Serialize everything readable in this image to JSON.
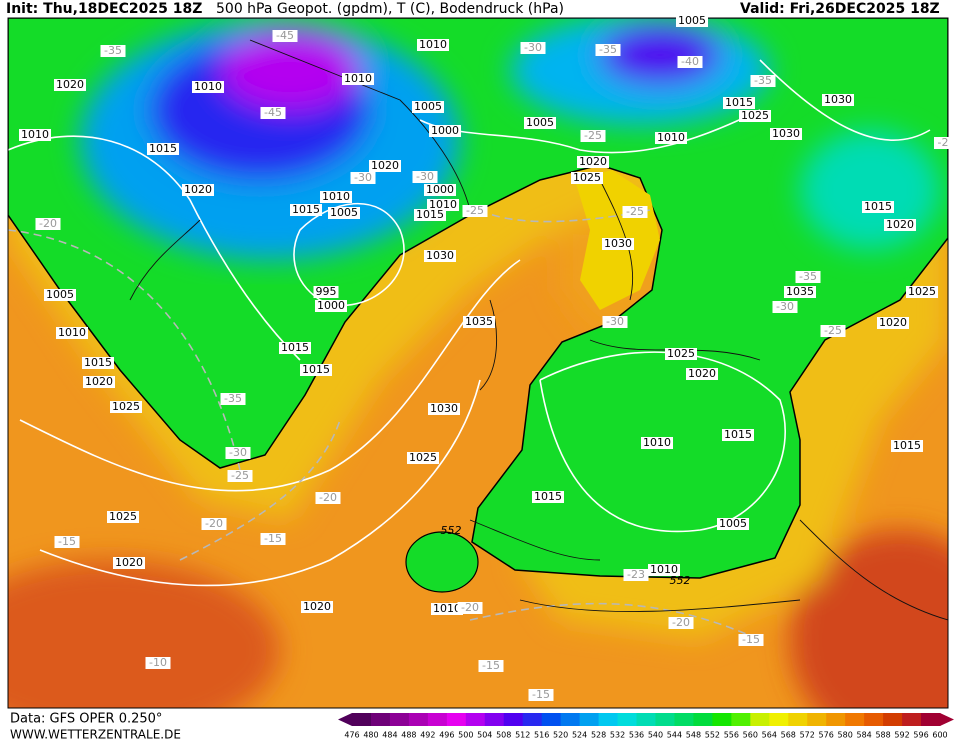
{
  "header": {
    "init": "Init: Thu,18DEC2025 18Z",
    "title": "500 hPa Geopot. (gpdm), T (C), Bodendruck (hPa)",
    "valid": "Valid: Fri,26DEC2025 18Z"
  },
  "footer": {
    "source": "Data: GFS OPER 0.250°",
    "website": "WWW.WETTERZENTRALE.DE"
  },
  "map_labels": [
    "1020",
    "1010",
    "1015",
    "1010",
    "1020",
    "-35",
    "-45",
    "-45",
    "1010",
    "1010",
    "1005",
    "1000",
    "1020",
    "1000",
    "1010",
    "1005",
    "1015",
    "1010",
    "1015",
    "-30",
    "-30",
    "1030",
    "995",
    "1000",
    "-20",
    "1005",
    "1010",
    "1015",
    "1020",
    "1025",
    "1015",
    "1015",
    "-35",
    "-30",
    "-25",
    "1025",
    "1030",
    "1035",
    "1025",
    "1020",
    "1030",
    "-25",
    "-25",
    "-30",
    "-35",
    "-25",
    "1005",
    "1010",
    "1015",
    "1025",
    "-35",
    "1030",
    "1030",
    "-40",
    "1005",
    "1015",
    "1020",
    "1035",
    "-35",
    "-30",
    "-25",
    "1020",
    "1025",
    "-30",
    "1025",
    "1020",
    "1010",
    "1015",
    "1015",
    "1005",
    "1010",
    "552",
    "-23",
    "-20",
    "-20",
    "-15",
    "-15",
    "1025",
    "1020",
    "1020",
    "1010",
    "-20",
    "552",
    "-20",
    "-15",
    "-15",
    "-15",
    "-10",
    "1015",
    "-2"
  ],
  "colorbar": {
    "levels": [
      476,
      480,
      484,
      488,
      492,
      496,
      500,
      504,
      508,
      512,
      516,
      520,
      524,
      528,
      532,
      536,
      540,
      544,
      548,
      552,
      556,
      560,
      564,
      568,
      572,
      576,
      580,
      584,
      588,
      592,
      596,
      600
    ],
    "colors": [
      "#50005a",
      "#6e0078",
      "#8c0096",
      "#aa00b4",
      "#c800d2",
      "#e600f0",
      "#b400f0",
      "#8200f0",
      "#5000f0",
      "#2828f0",
      "#0050f0",
      "#0078f0",
      "#00a0f0",
      "#00c8f0",
      "#00dcdc",
      "#00dcb4",
      "#00dc8c",
      "#00dc64",
      "#00dc3c",
      "#14e600",
      "#50f000",
      "#c8f000",
      "#f0f000",
      "#f0d200",
      "#f0b400",
      "#f09600",
      "#f07800",
      "#e65a00",
      "#d23c00",
      "#be1e1e",
      "#a00032"
    ]
  }
}
